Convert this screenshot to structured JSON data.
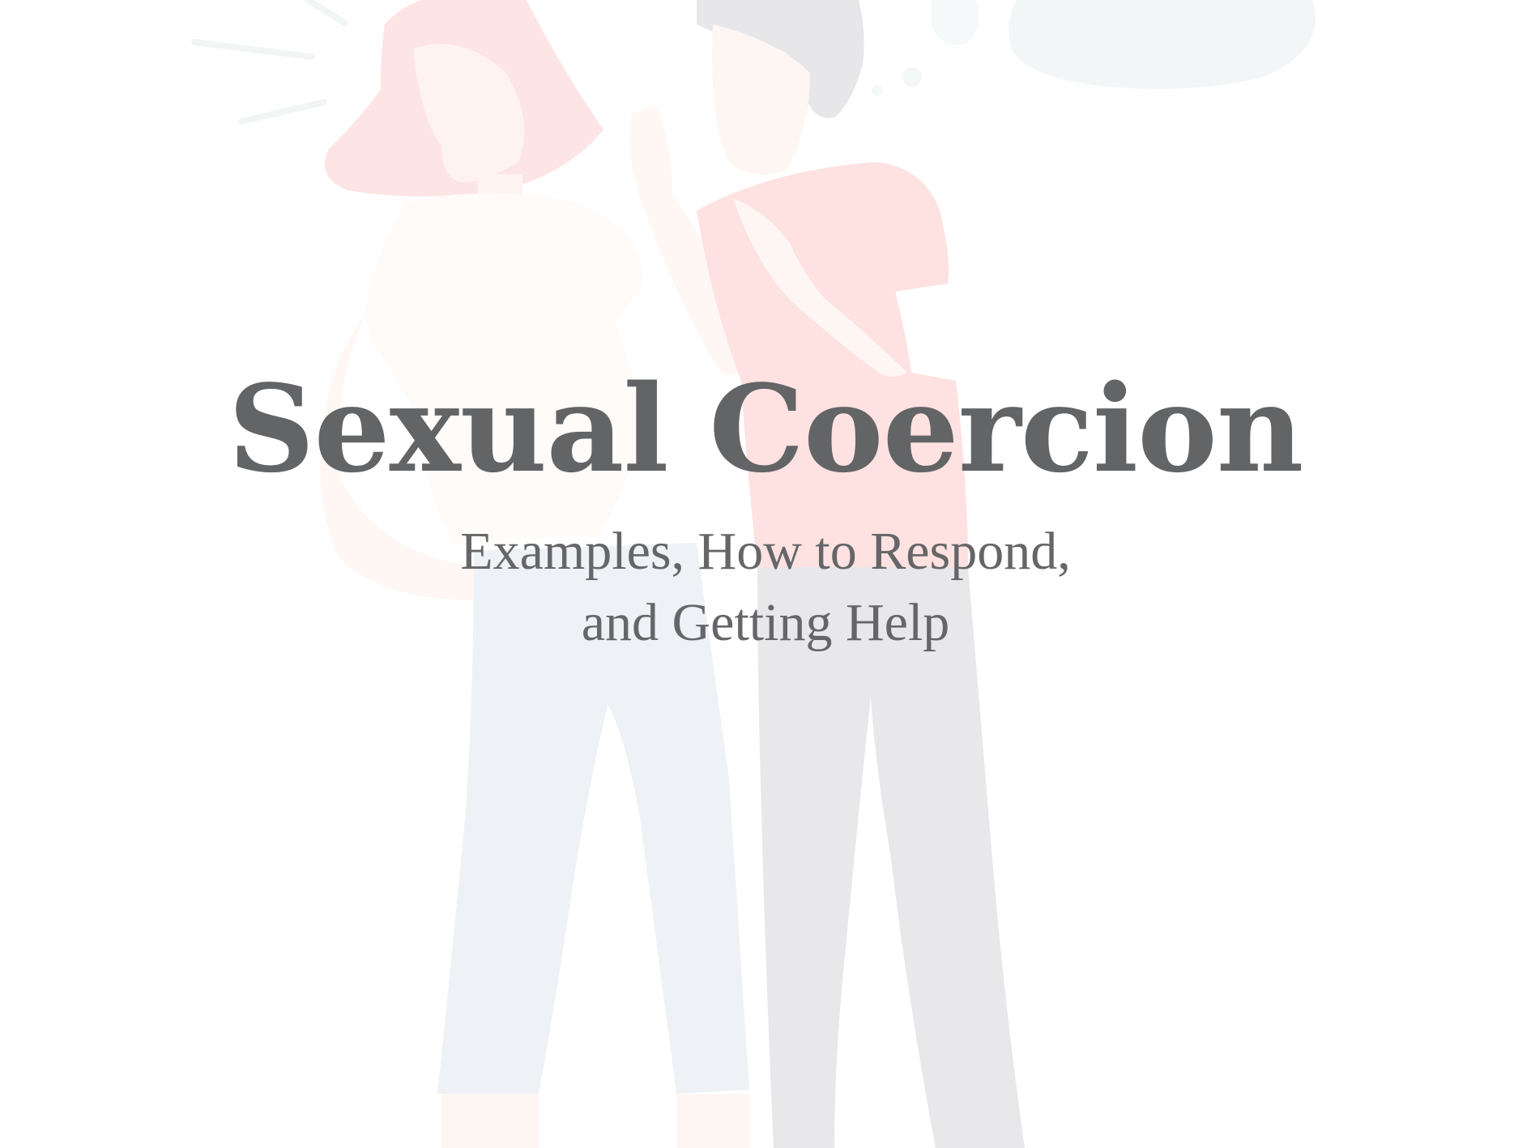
{
  "title": "Sexual Coercion",
  "subtitle_lines": [
    "Examples, How to Respond,",
    "and Getting Help"
  ],
  "colors": {
    "text": "#636466",
    "background": "#ffffff",
    "hair_woman": "#fbe3e4",
    "shirt_man": "#fde3e2",
    "pants_woman": "#eef1f6",
    "pants_man": "#e8e8ea",
    "skin": "#fef6f2",
    "bubble": "#f4f7f8"
  }
}
